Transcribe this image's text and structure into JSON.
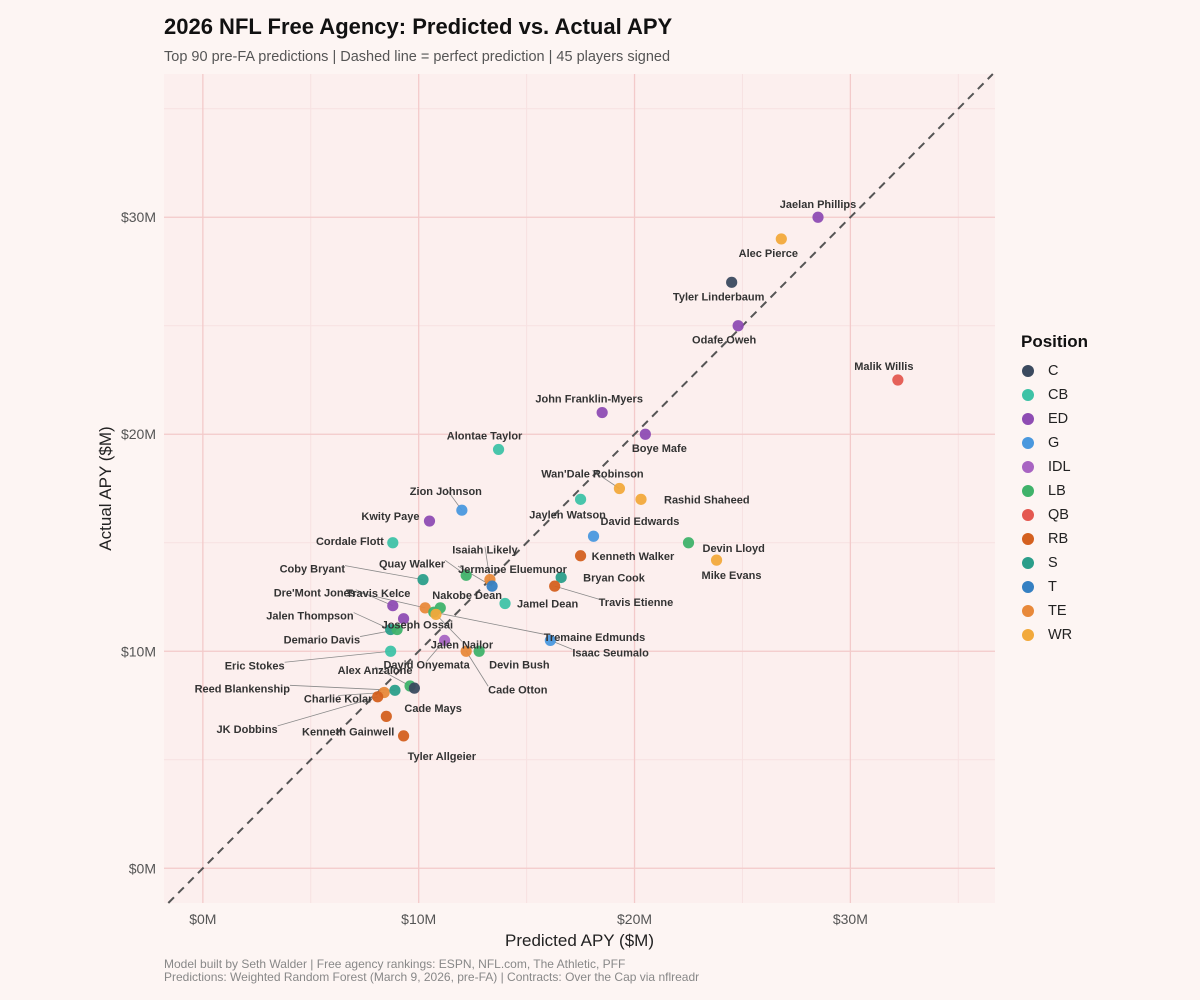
{
  "title": "2026 NFL Free Agency: Predicted vs. Actual APY",
  "subtitle": "Top 90 pre-FA predictions | Dashed line = perfect prediction | 45 players signed",
  "caption_line1": "Model built by Seth Walder | Free agency rankings: ESPN, NFL.com, The Athletic, PFF",
  "caption_line2": "Predictions: Weighted Random Forest (March 9, 2026, pre-FA) | Contracts: Over the Cap via nflreadr",
  "legend": {
    "title": "Position",
    "items": [
      {
        "label": "C",
        "color": "#3b4a5f"
      },
      {
        "label": "CB",
        "color": "#3ec2a6"
      },
      {
        "label": "ED",
        "color": "#8e4cb3"
      },
      {
        "label": "G",
        "color": "#4a98de"
      },
      {
        "label": "IDL",
        "color": "#a864c2"
      },
      {
        "label": "LB",
        "color": "#3fb26a"
      },
      {
        "label": "QB",
        "color": "#e45850"
      },
      {
        "label": "RB",
        "color": "#d4601f"
      },
      {
        "label": "S",
        "color": "#2b9e8a"
      },
      {
        "label": "T",
        "color": "#3580c2"
      },
      {
        "label": "TE",
        "color": "#e8893a"
      },
      {
        "label": "WR",
        "color": "#f2a93b"
      }
    ]
  },
  "chart_data": {
    "type": "scatter",
    "title": "2026 NFL Free Agency: Predicted vs. Actual APY",
    "xlabel": "Predicted APY ($M)",
    "ylabel": "Actual APY ($M)",
    "xlim": [
      -1.8,
      36.7
    ],
    "ylim": [
      -1.6,
      36.6
    ],
    "x_ticks": [
      0,
      10,
      20,
      30
    ],
    "x_tick_labels": [
      "$0M",
      "$10M",
      "$20M",
      "$30M"
    ],
    "y_ticks": [
      0,
      10,
      20,
      30
    ],
    "y_tick_labels": [
      "$0M",
      "$10M",
      "$20M",
      "$30M"
    ],
    "reference_line": "y = x (dashed)",
    "points": [
      {
        "name": "Jaelan Phillips",
        "pos": "ED",
        "x": 28.5,
        "y": 30.0
      },
      {
        "name": "Alec Pierce",
        "pos": "WR",
        "x": 26.8,
        "y": 29.0
      },
      {
        "name": "Tyler Linderbaum",
        "pos": "C",
        "x": 24.5,
        "y": 27.0
      },
      {
        "name": "Odafe Oweh",
        "pos": "ED",
        "x": 24.8,
        "y": 25.0
      },
      {
        "name": "Malik Willis",
        "pos": "QB",
        "x": 32.2,
        "y": 22.5
      },
      {
        "name": "John Franklin-Myers",
        "pos": "ED",
        "x": 18.5,
        "y": 21.0
      },
      {
        "name": "Boye Mafe",
        "pos": "ED",
        "x": 20.5,
        "y": 20.0
      },
      {
        "name": "Alontae Taylor",
        "pos": "CB",
        "x": 13.7,
        "y": 19.3
      },
      {
        "name": "Wan'Dale Robinson",
        "pos": "WR",
        "x": 19.3,
        "y": 17.5
      },
      {
        "name": "Rashid Shaheed",
        "pos": "WR",
        "x": 20.3,
        "y": 17.0
      },
      {
        "name": "Jaylen Watson",
        "pos": "CB",
        "x": 17.5,
        "y": 17.0
      },
      {
        "name": "Zion Johnson",
        "pos": "G",
        "x": 12.0,
        "y": 16.5
      },
      {
        "name": "Kwity Paye",
        "pos": "ED",
        "x": 10.5,
        "y": 16.0
      },
      {
        "name": "David Edwards",
        "pos": "G",
        "x": 18.1,
        "y": 15.3
      },
      {
        "name": "Cordale Flott",
        "pos": "CB",
        "x": 8.8,
        "y": 15.0
      },
      {
        "name": "Devin Lloyd",
        "pos": "LB",
        "x": 22.5,
        "y": 15.0
      },
      {
        "name": "Kenneth Walker",
        "pos": "RB",
        "x": 17.5,
        "y": 14.4
      },
      {
        "name": "Mike Evans",
        "pos": "WR",
        "x": 23.8,
        "y": 14.2
      },
      {
        "name": "Isaiah Likely",
        "pos": "TE",
        "x": 13.3,
        "y": 13.3
      },
      {
        "name": "Jermaine Eluemunor",
        "pos": "T",
        "x": 13.4,
        "y": 13.0
      },
      {
        "name": "Bryan Cook",
        "pos": "S",
        "x": 16.6,
        "y": 13.4
      },
      {
        "name": "Quay Walker",
        "pos": "LB",
        "x": 12.2,
        "y": 13.5
      },
      {
        "name": "Coby Bryant",
        "pos": "S",
        "x": 10.2,
        "y": 13.3
      },
      {
        "name": "Travis Etienne",
        "pos": "RB",
        "x": 16.3,
        "y": 13.0
      },
      {
        "name": "Nakobe Dean",
        "pos": "LB",
        "x": 11.0,
        "y": 12.0
      },
      {
        "name": "Jamel Dean",
        "pos": "CB",
        "x": 14.0,
        "y": 12.2
      },
      {
        "name": "Travis Kelce",
        "pos": "TE",
        "x": 10.3,
        "y": 12.0
      },
      {
        "name": "Dre'Mont Jones",
        "pos": "ED",
        "x": 8.8,
        "y": 12.1
      },
      {
        "name": "Tremaine Edmunds",
        "pos": "LB",
        "x": 10.7,
        "y": 11.8
      },
      {
        "name": "Joseph Ossai",
        "pos": "ED",
        "x": 9.3,
        "y": 11.5
      },
      {
        "name": "Jalen Thompson",
        "pos": "S",
        "x": 8.7,
        "y": 11.0
      },
      {
        "name": "Demario Davis",
        "pos": "LB",
        "x": 9.0,
        "y": 11.0
      },
      {
        "name": "Jalen Nailor",
        "pos": "WR",
        "x": 10.8,
        "y": 11.7
      },
      {
        "name": "Isaac Seumalo",
        "pos": "G",
        "x": 16.1,
        "y": 10.5
      },
      {
        "name": "Cade Otton",
        "pos": "TE",
        "x": 12.2,
        "y": 10.0
      },
      {
        "name": "Devin Bush",
        "pos": "LB",
        "x": 12.8,
        "y": 10.0
      },
      {
        "name": "David Onyemata",
        "pos": "IDL",
        "x": 11.2,
        "y": 10.5
      },
      {
        "name": "Eric Stokes",
        "pos": "CB",
        "x": 8.7,
        "y": 10.0
      },
      {
        "name": "Alex Anzalone",
        "pos": "LB",
        "x": 9.6,
        "y": 8.4
      },
      {
        "name": "Cade Mays",
        "pos": "C",
        "x": 9.8,
        "y": 8.3
      },
      {
        "name": "Charlie Kolar",
        "pos": "TE",
        "x": 8.4,
        "y": 8.1
      },
      {
        "name": "Reed Blankenship",
        "pos": "S",
        "x": 8.9,
        "y": 8.2
      },
      {
        "name": "JK Dobbins",
        "pos": "RB",
        "x": 8.1,
        "y": 7.9
      },
      {
        "name": "Kenneth Gainwell",
        "pos": "RB",
        "x": 8.5,
        "y": 7.0
      },
      {
        "name": "Tyler Allgeier",
        "pos": "RB",
        "x": 9.3,
        "y": 6.1
      }
    ]
  }
}
